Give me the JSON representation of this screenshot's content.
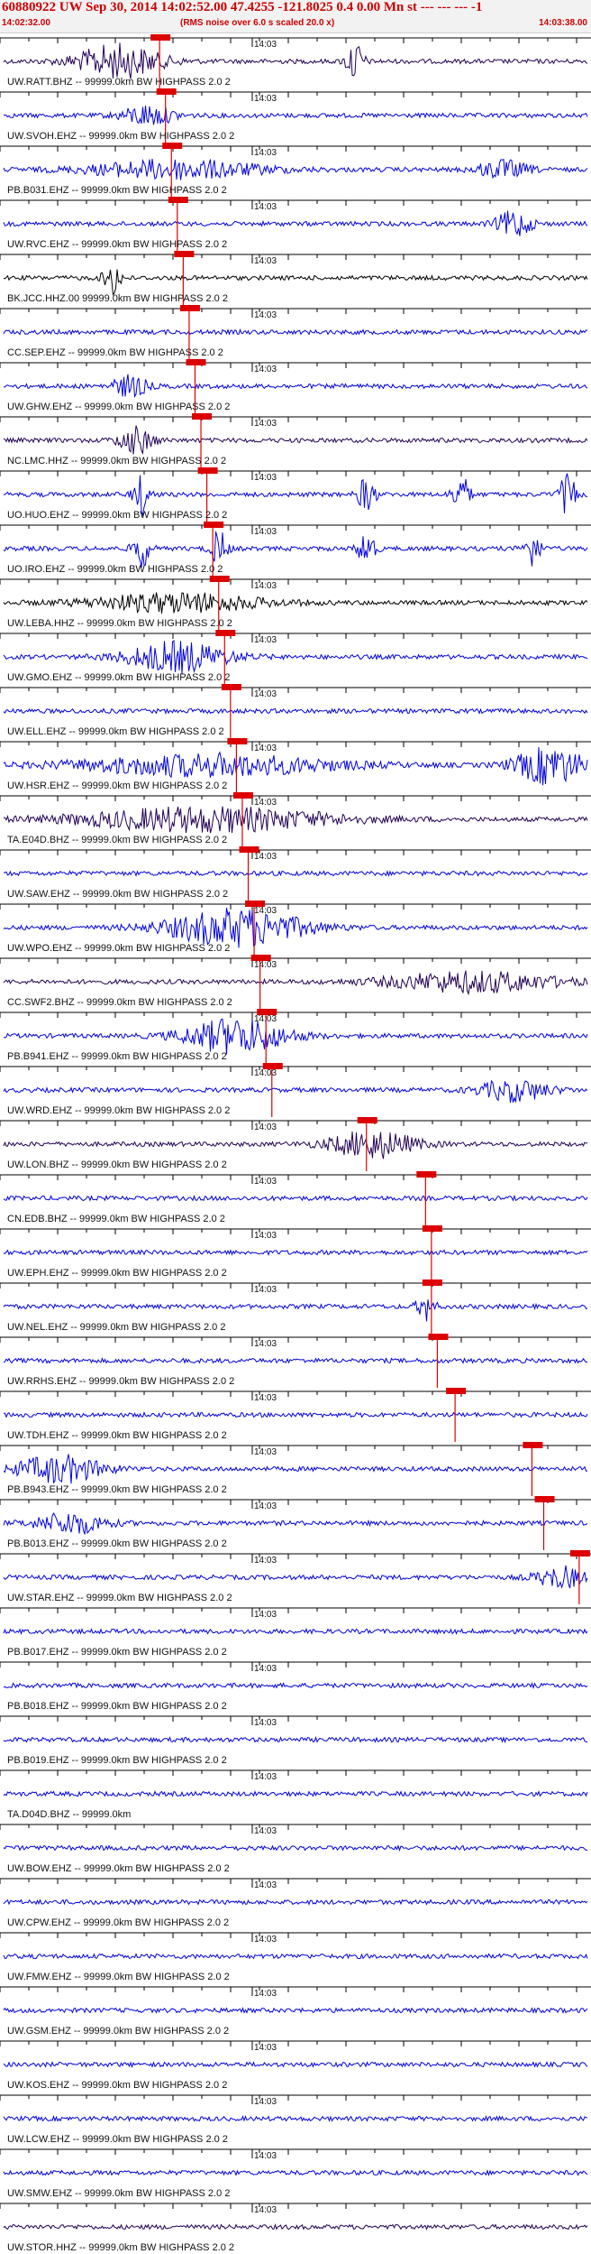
{
  "header": {
    "title": "60880922 UW Sep 30, 2014 14:02:52.00   47.4255 -121.8025  0.4 0.00 Mn st --- --- ---  -1",
    "time_start": "14:02:32.00",
    "rms_note": "(RMS noise over 6.0 s scaled 20.0 x)",
    "time_end": "14:03:38.00"
  },
  "colors": {
    "primary": "#0000dd",
    "dark": "#220055",
    "black": "#000000",
    "pick": "#dd0000"
  },
  "panel_time_label": "14:03",
  "traces": [
    {
      "label": "UW.RATT.BHZ -- 99999.0km BW  HIGHPASS  2.0  2",
      "pick": 0.27,
      "color": "dark",
      "bursts": [
        [
          0.2,
          0.05,
          2.5
        ],
        [
          0.6,
          0.01,
          3.0
        ]
      ]
    },
    {
      "label": "UW.SVOH.EHZ -- 99999.0km BW  HIGHPASS  2.0  2",
      "pick": 0.28,
      "color": "primary",
      "bursts": [
        [
          0.25,
          0.03,
          1.5
        ]
      ]
    },
    {
      "label": "PB.B031.EHZ -- 99999.0km BW  HIGHPASS  2.0  2",
      "pick": 0.29,
      "color": "primary",
      "bursts": [
        [
          0.3,
          0.1,
          1.4
        ],
        [
          0.85,
          0.03,
          1.3
        ]
      ]
    },
    {
      "label": "UW.RVC.EHZ -- 99999.0km BW  HIGHPASS  2.0  2",
      "pick": 0.3,
      "color": "primary",
      "bursts": [
        [
          0.87,
          0.02,
          2.0
        ]
      ]
    },
    {
      "label": "BK.JCC.HHZ.00 99999.0km BW  HIGHPASS  2.0  2",
      "pick": 0.31,
      "color": "black",
      "bursts": [
        [
          0.19,
          0.01,
          2.5
        ]
      ]
    },
    {
      "label": "CC.SEP.EHZ -- 99999.0km BW  HIGHPASS  2.0  2",
      "pick": 0.32,
      "color": "primary",
      "bursts": []
    },
    {
      "label": "UW.GHW.EHZ -- 99999.0km BW  HIGHPASS  2.0  2",
      "pick": 0.33,
      "color": "primary",
      "bursts": [
        [
          0.22,
          0.02,
          1.6
        ]
      ]
    },
    {
      "label": "NC.LMC.HHZ -- 99999.0km BW  HIGHPASS  2.0  2",
      "pick": 0.34,
      "color": "dark",
      "bursts": [
        [
          0.23,
          0.02,
          2.0
        ]
      ]
    },
    {
      "label": "UO.HUO.EHZ -- 99999.0km BW  HIGHPASS  2.0  2",
      "pick": 0.35,
      "color": "primary",
      "bursts": [
        [
          0.24,
          0.01,
          2.8
        ],
        [
          0.62,
          0.01,
          2.6
        ],
        [
          0.78,
          0.01,
          2.8
        ],
        [
          0.96,
          0.01,
          2.8
        ]
      ]
    },
    {
      "label": "UO.IRO.EHZ -- 99999.0km BW  HIGHPASS  2.0  2",
      "pick": 0.36,
      "color": "primary",
      "bursts": [
        [
          0.24,
          0.01,
          2.8
        ],
        [
          0.37,
          0.01,
          2.6
        ],
        [
          0.62,
          0.01,
          2.6
        ],
        [
          0.9,
          0.01,
          2.6
        ]
      ]
    },
    {
      "label": "UW.LEBA.HHZ -- 99999.0km BW  HIGHPASS  2.0  2",
      "pick": 0.37,
      "color": "black",
      "bursts": [
        [
          0.3,
          0.1,
          1.4
        ]
      ]
    },
    {
      "label": "UW.GMO.EHZ -- 99999.0km BW  HIGHPASS  2.0  2",
      "pick": 0.38,
      "color": "primary",
      "bursts": [
        [
          0.3,
          0.06,
          2.2
        ]
      ]
    },
    {
      "label": "UW.ELL.EHZ -- 99999.0km BW  HIGHPASS  2.0  2",
      "pick": 0.39,
      "color": "primary",
      "bursts": []
    },
    {
      "label": "UW.HSR.EHZ -- 99999.0km BW  HIGHPASS  2.0  2",
      "pick": 0.4,
      "color": "primary",
      "bursts": [
        [
          0.35,
          0.15,
          1.6
        ],
        [
          0.93,
          0.04,
          2.8
        ]
      ]
    },
    {
      "label": "TA.E04D.BHZ -- 99999.0km BW  HIGHPASS  2.0  2",
      "pick": 0.41,
      "color": "dark",
      "bursts": [
        [
          0.35,
          0.15,
          1.8
        ]
      ]
    },
    {
      "label": "UW.SAW.EHZ -- 99999.0km BW  HIGHPASS  2.0  2",
      "pick": 0.42,
      "color": "primary",
      "bursts": []
    },
    {
      "label": "UW.WPO.EHZ -- 99999.0km BW  HIGHPASS  2.0  2",
      "pick": 0.43,
      "color": "primary",
      "bursts": [
        [
          0.4,
          0.08,
          2.8
        ]
      ]
    },
    {
      "label": "CC.SWF2.BHZ -- 99999.0km BW  HIGHPASS  2.0  2",
      "pick": 0.44,
      "color": "dark",
      "bursts": [
        [
          0.8,
          0.1,
          1.5
        ]
      ]
    },
    {
      "label": "PB.B941.EHZ -- 99999.0km BW  HIGHPASS  2.0  2",
      "pick": 0.45,
      "color": "primary",
      "bursts": [
        [
          0.4,
          0.06,
          2.6
        ]
      ]
    },
    {
      "label": "UW.WRD.EHZ -- 99999.0km BW  HIGHPASS  2.0  2",
      "pick": 0.46,
      "color": "primary",
      "bursts": [
        [
          0.87,
          0.04,
          1.6
        ]
      ]
    },
    {
      "label": "UW.LON.BHZ -- 99999.0km BW  HIGHPASS  2.0  2",
      "pick": 0.62,
      "color": "dark",
      "bursts": [
        [
          0.63,
          0.05,
          2.0
        ]
      ]
    },
    {
      "label": "CN.EDB.BHZ -- 99999.0km BW  HIGHPASS  2.0  2",
      "pick": 0.72,
      "color": "primary",
      "bursts": []
    },
    {
      "label": "UW.EPH.EHZ -- 99999.0km BW  HIGHPASS  2.0  2",
      "pick": 0.73,
      "color": "primary",
      "bursts": []
    },
    {
      "label": "UW.NEL.EHZ -- 99999.0km BW  HIGHPASS  2.0  2",
      "pick": 0.73,
      "color": "primary",
      "bursts": [
        [
          0.72,
          0.01,
          2.0
        ]
      ]
    },
    {
      "label": "UW.RRHS.EHZ -- 99999.0km BW  HIGHPASS  2.0  2",
      "pick": 0.74,
      "color": "primary",
      "bursts": []
    },
    {
      "label": "UW.TDH.EHZ -- 99999.0km BW  HIGHPASS  2.0  2",
      "pick": 0.77,
      "color": "primary",
      "bursts": []
    },
    {
      "label": "PB.B943.EHZ -- 99999.0km BW  HIGHPASS  2.0  2",
      "pick": 0.9,
      "color": "primary",
      "bursts": [
        [
          0.1,
          0.05,
          2.0
        ]
      ]
    },
    {
      "label": "PB.B013.EHZ -- 99999.0km BW  HIGHPASS  2.0  2",
      "pick": 0.92,
      "color": "primary",
      "bursts": [
        [
          0.12,
          0.04,
          1.6
        ]
      ]
    },
    {
      "label": "UW.STAR.EHZ -- 99999.0km BW  HIGHPASS  2.0  2",
      "pick": 0.98,
      "color": "primary",
      "bursts": [
        [
          0.95,
          0.03,
          1.5
        ]
      ]
    },
    {
      "label": "PB.B017.EHZ -- 99999.0km BW  HIGHPASS  2.0  2",
      "pick": null,
      "color": "primary",
      "bursts": []
    },
    {
      "label": "PB.B018.EHZ -- 99999.0km BW  HIGHPASS  2.0  2",
      "pick": null,
      "color": "primary",
      "bursts": []
    },
    {
      "label": "PB.B019.EHZ -- 99999.0km BW  HIGHPASS  2.0  2",
      "pick": null,
      "color": "primary",
      "bursts": []
    },
    {
      "label": "TA.D04D.BHZ -- 99999.0km",
      "pick": null,
      "color": "primary",
      "bursts": []
    },
    {
      "label": "UW.BOW.EHZ -- 99999.0km BW  HIGHPASS  2.0  2",
      "pick": null,
      "color": "primary",
      "bursts": []
    },
    {
      "label": "UW.CPW.EHZ -- 99999.0km BW  HIGHPASS  2.0  2",
      "pick": null,
      "color": "primary",
      "bursts": []
    },
    {
      "label": "UW.FMW.EHZ -- 99999.0km BW  HIGHPASS  2.0  2",
      "pick": null,
      "color": "primary",
      "bursts": []
    },
    {
      "label": "UW.GSM.EHZ -- 99999.0km BW  HIGHPASS  2.0  2",
      "pick": null,
      "color": "primary",
      "bursts": []
    },
    {
      "label": "UW.KOS.EHZ -- 99999.0km BW  HIGHPASS  2.0  2",
      "pick": null,
      "color": "primary",
      "bursts": []
    },
    {
      "label": "UW.LCW.EHZ -- 99999.0km BW  HIGHPASS  2.0  2",
      "pick": null,
      "color": "primary",
      "bursts": []
    },
    {
      "label": "UW.SMW.EHZ -- 99999.0km BW  HIGHPASS  2.0  2",
      "pick": null,
      "color": "primary",
      "bursts": []
    },
    {
      "label": "UW.STOR.HHZ -- 99999.0km BW  HIGHPASS  2.0  2",
      "pick": null,
      "color": "dark",
      "bursts": []
    }
  ]
}
